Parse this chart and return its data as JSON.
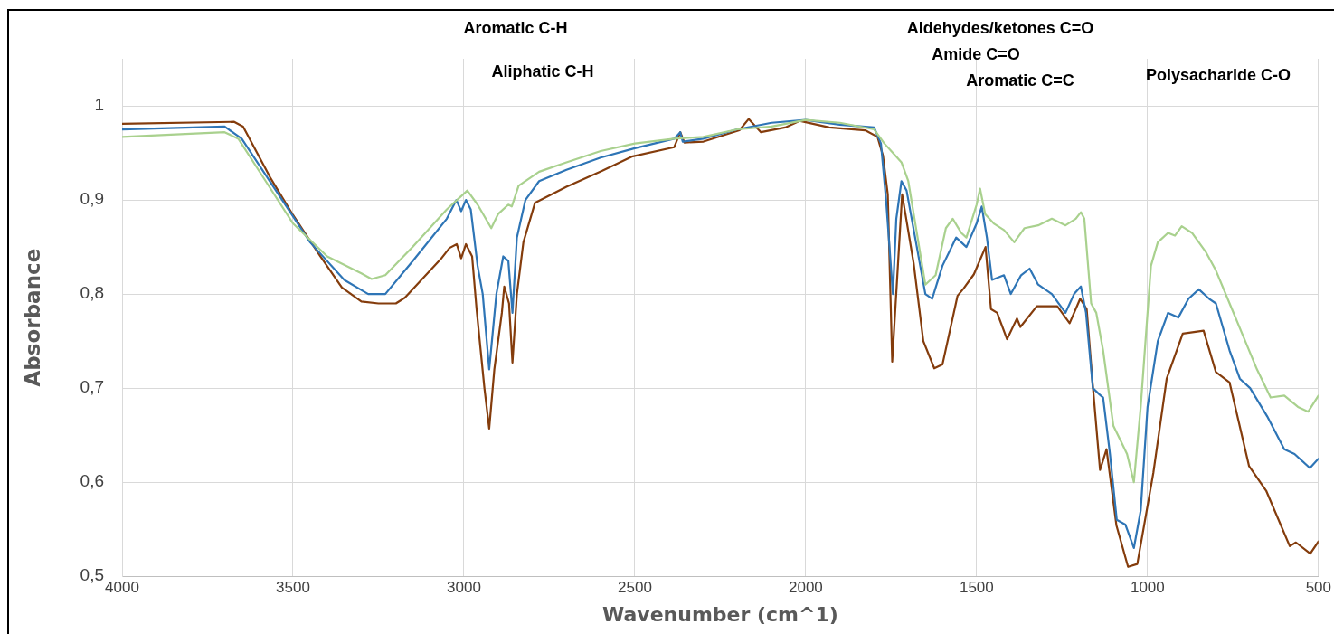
{
  "chart_data": {
    "type": "line",
    "xlabel": "Wavenumber (cm^1)",
    "ylabel": "Absorbance",
    "xlim": [
      4000,
      500
    ],
    "xticks": [
      4000,
      3500,
      3000,
      2500,
      2000,
      1500,
      1000,
      500
    ],
    "ylim": [
      0.5,
      1.05
    ],
    "yticks": [
      {
        "value": 0.5,
        "label": "0,5"
      },
      {
        "value": 0.6,
        "label": "0,6"
      },
      {
        "value": 0.7,
        "label": "0,7"
      },
      {
        "value": 0.8,
        "label": "0,8"
      },
      {
        "value": 0.9,
        "label": "0,9"
      },
      1
    ],
    "grid": true,
    "legend": false,
    "marker": "none",
    "line_style": "solid",
    "annotations": [
      "Aromatic C-H",
      "Aliphatic C-H",
      "Aldehydes/ketones C=O",
      "Amide C=O",
      "Aromatic C=C",
      "Polysacharide C-O"
    ],
    "series": [
      {
        "color": "#a9d18e",
        "x": [
          4000,
          3700,
          3660,
          3580,
          3500,
          3400,
          3300,
          3270,
          3230,
          3150,
          3050,
          2990,
          2960,
          2920,
          2900,
          2870,
          2860,
          2840,
          2780,
          2700,
          2600,
          2500,
          2385,
          2300,
          2200,
          2100,
          2000,
          1900,
          1800,
          1770,
          1745,
          1720,
          1700,
          1650,
          1620,
          1590,
          1570,
          1545,
          1530,
          1500,
          1490,
          1475,
          1450,
          1420,
          1390,
          1380,
          1360,
          1320,
          1280,
          1240,
          1210,
          1195,
          1185,
          1165,
          1150,
          1130,
          1100,
          1080,
          1060,
          1040,
          1020,
          990,
          970,
          940,
          920,
          900,
          870,
          830,
          800,
          760,
          720,
          680,
          640,
          600,
          560,
          530,
          500
        ],
        "values": [
          0.967,
          0.972,
          0.965,
          0.92,
          0.875,
          0.84,
          0.822,
          0.816,
          0.82,
          0.85,
          0.89,
          0.91,
          0.895,
          0.87,
          0.885,
          0.895,
          0.893,
          0.915,
          0.93,
          0.94,
          0.952,
          0.96,
          0.965,
          0.967,
          0.975,
          0.978,
          0.985,
          0.982,
          0.975,
          0.96,
          0.95,
          0.94,
          0.92,
          0.81,
          0.82,
          0.87,
          0.88,
          0.865,
          0.86,
          0.895,
          0.912,
          0.885,
          0.875,
          0.868,
          0.855,
          0.86,
          0.87,
          0.873,
          0.88,
          0.873,
          0.88,
          0.887,
          0.88,
          0.79,
          0.78,
          0.74,
          0.66,
          0.645,
          0.63,
          0.6,
          0.68,
          0.83,
          0.855,
          0.865,
          0.862,
          0.872,
          0.865,
          0.845,
          0.825,
          0.79,
          0.755,
          0.72,
          0.69,
          0.692,
          0.68,
          0.675,
          0.692
        ]
      },
      {
        "color": "#2e75b6",
        "x": [
          4000,
          3700,
          3650,
          3550,
          3450,
          3350,
          3280,
          3230,
          3150,
          3050,
          3022,
          3008,
          2994,
          2980,
          2960,
          2945,
          2926,
          2905,
          2885,
          2870,
          2858,
          2845,
          2820,
          2780,
          2700,
          2600,
          2500,
          2385,
          2367,
          2360,
          2300,
          2200,
          2100,
          2000,
          1900,
          1800,
          1780,
          1765,
          1745,
          1735,
          1720,
          1705,
          1680,
          1650,
          1630,
          1600,
          1560,
          1530,
          1500,
          1485,
          1470,
          1455,
          1420,
          1400,
          1370,
          1345,
          1320,
          1280,
          1240,
          1215,
          1195,
          1180,
          1160,
          1140,
          1130,
          1110,
          1090,
          1065,
          1040,
          1020,
          1000,
          970,
          940,
          910,
          880,
          850,
          820,
          800,
          760,
          730,
          700,
          650,
          600,
          570,
          525,
          500
        ],
        "values": [
          0.975,
          0.978,
          0.965,
          0.91,
          0.855,
          0.815,
          0.8,
          0.8,
          0.835,
          0.88,
          0.9,
          0.888,
          0.9,
          0.89,
          0.83,
          0.8,
          0.72,
          0.8,
          0.84,
          0.835,
          0.78,
          0.86,
          0.9,
          0.92,
          0.932,
          0.945,
          0.955,
          0.965,
          0.972,
          0.962,
          0.965,
          0.975,
          0.982,
          0.985,
          0.98,
          0.977,
          0.96,
          0.9,
          0.8,
          0.88,
          0.92,
          0.91,
          0.86,
          0.8,
          0.795,
          0.83,
          0.86,
          0.85,
          0.875,
          0.893,
          0.86,
          0.815,
          0.82,
          0.8,
          0.82,
          0.827,
          0.81,
          0.8,
          0.78,
          0.8,
          0.808,
          0.78,
          0.7,
          0.693,
          0.69,
          0.63,
          0.56,
          0.555,
          0.53,
          0.57,
          0.68,
          0.75,
          0.78,
          0.775,
          0.795,
          0.805,
          0.795,
          0.79,
          0.74,
          0.71,
          0.7,
          0.67,
          0.635,
          0.63,
          0.615,
          0.625
        ]
      },
      {
        "color": "#843c0c",
        "x": [
          4000,
          3672,
          3646,
          3567,
          3500,
          3420,
          3357,
          3300,
          3250,
          3199,
          3173,
          3068,
          3042,
          3021,
          3008,
          2994,
          2976,
          2963,
          2940,
          2926,
          2911,
          2889,
          2882,
          2868,
          2858,
          2845,
          2826,
          2792,
          2700,
          2595,
          2509,
          2385,
          2367,
          2355,
          2299,
          2194,
          2167,
          2131,
          2060,
          2018,
          1931,
          1826,
          1790,
          1774,
          1760,
          1747,
          1718,
          1684,
          1656,
          1624,
          1600,
          1556,
          1538,
          1508,
          1474,
          1458,
          1440,
          1411,
          1382,
          1372,
          1324,
          1264,
          1228,
          1197,
          1178,
          1160,
          1139,
          1120,
          1091,
          1057,
          1030,
          983,
          944,
          897,
          836,
          800,
          760,
          703,
          653,
          584,
          566,
          524,
          500
        ],
        "values": [
          0.981,
          0.983,
          0.978,
          0.924,
          0.884,
          0.84,
          0.807,
          0.792,
          0.79,
          0.79,
          0.796,
          0.837,
          0.849,
          0.853,
          0.838,
          0.853,
          0.84,
          0.784,
          0.7,
          0.657,
          0.72,
          0.78,
          0.808,
          0.79,
          0.727,
          0.8,
          0.855,
          0.897,
          0.914,
          0.931,
          0.946,
          0.956,
          0.972,
          0.961,
          0.962,
          0.974,
          0.986,
          0.972,
          0.977,
          0.984,
          0.977,
          0.974,
          0.967,
          0.947,
          0.906,
          0.728,
          0.906,
          0.832,
          0.75,
          0.721,
          0.725,
          0.798,
          0.806,
          0.821,
          0.85,
          0.784,
          0.78,
          0.752,
          0.774,
          0.765,
          0.787,
          0.787,
          0.769,
          0.795,
          0.784,
          0.702,
          0.613,
          0.635,
          0.554,
          0.51,
          0.513,
          0.61,
          0.71,
          0.758,
          0.761,
          0.717,
          0.706,
          0.617,
          0.591,
          0.532,
          0.536,
          0.524,
          0.537
        ]
      }
    ]
  }
}
